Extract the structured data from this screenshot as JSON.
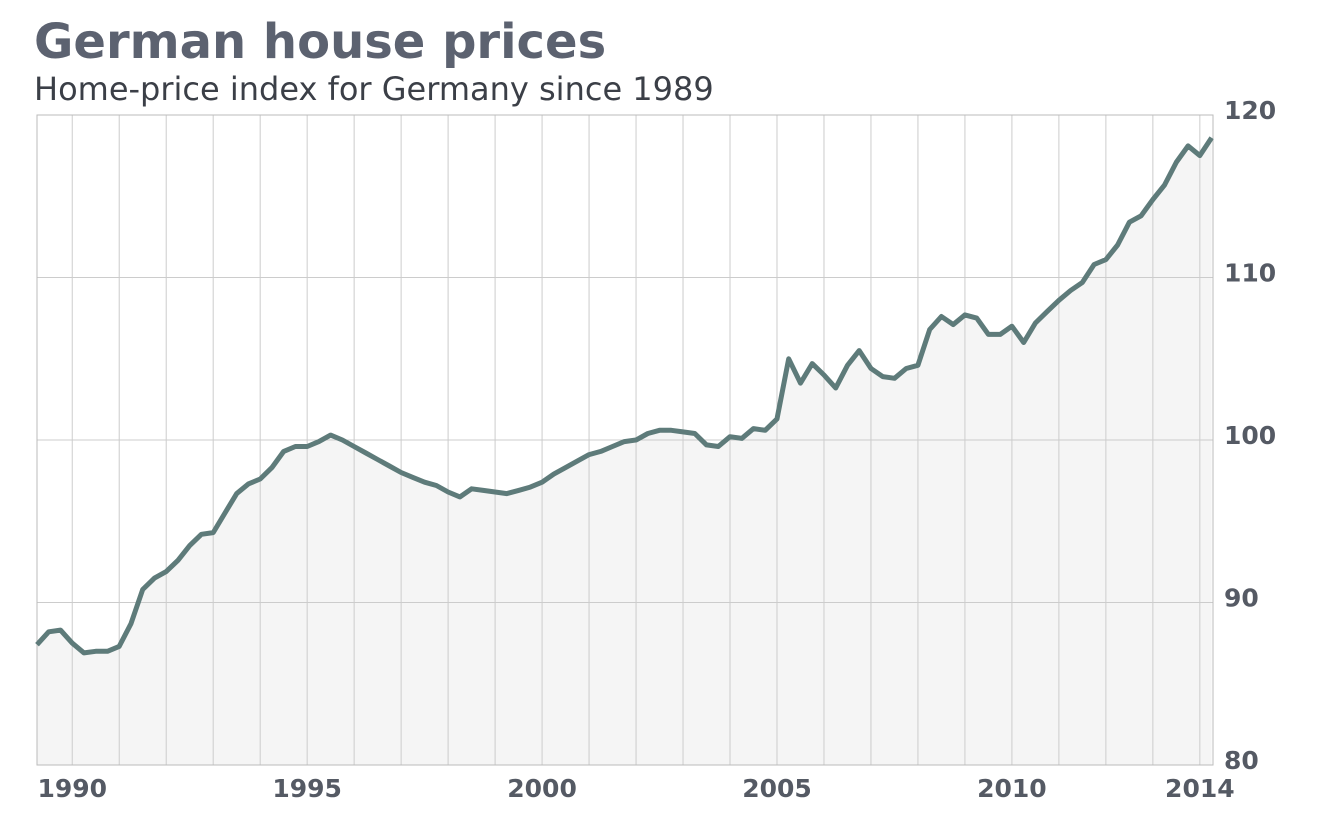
{
  "chart_data": {
    "type": "line",
    "title": "German house prices",
    "subtitle": "Home-price index for Germany since 1989",
    "x": [
      1989.25,
      1989.5,
      1989.75,
      1990,
      1990.25,
      1990.5,
      1990.75,
      1991,
      1991.25,
      1991.5,
      1991.75,
      1992,
      1992.25,
      1992.5,
      1992.75,
      1993,
      1993.25,
      1993.5,
      1993.75,
      1994,
      1994.25,
      1994.5,
      1994.75,
      1995,
      1995.25,
      1995.5,
      1995.75,
      1996,
      1996.25,
      1996.5,
      1996.75,
      1997,
      1997.25,
      1997.5,
      1997.75,
      1998,
      1998.25,
      1998.5,
      1998.75,
      1999,
      1999.25,
      1999.5,
      1999.75,
      2000,
      2000.25,
      2000.5,
      2000.75,
      2001,
      2001.25,
      2001.5,
      2001.75,
      2002,
      2002.25,
      2002.5,
      2002.75,
      2003,
      2003.25,
      2003.5,
      2003.75,
      2004,
      2004.25,
      2004.5,
      2004.75,
      2005,
      2005.25,
      2005.5,
      2005.75,
      2006,
      2006.25,
      2006.5,
      2006.75,
      2007,
      2007.25,
      2007.5,
      2007.75,
      2008,
      2008.25,
      2008.5,
      2008.75,
      2009,
      2009.25,
      2009.5,
      2009.75,
      2010,
      2010.25,
      2010.5,
      2010.75,
      2011,
      2011.25,
      2011.5,
      2011.75,
      2012,
      2012.25,
      2012.5,
      2012.75,
      2013,
      2013.25,
      2013.5,
      2013.75,
      2014,
      2014.25
    ],
    "series": [
      {
        "color": "#5e7b7a",
        "fill": "#f5f5f5",
        "values": [
          87.4,
          88.2,
          88.3,
          87.5,
          86.9,
          87.0,
          87.0,
          87.3,
          88.7,
          90.8,
          91.5,
          91.9,
          92.6,
          93.5,
          94.2,
          94.3,
          95.5,
          96.7,
          97.3,
          97.6,
          98.3,
          99.3,
          99.6,
          99.6,
          99.9,
          100.3,
          100.0,
          99.6,
          99.2,
          98.8,
          98.4,
          98.0,
          97.7,
          97.4,
          97.2,
          96.8,
          96.5,
          97.0,
          96.9,
          96.8,
          96.7,
          96.9,
          97.1,
          97.4,
          97.9,
          98.3,
          98.7,
          99.1,
          99.3,
          99.6,
          99.9,
          100.0,
          100.4,
          100.6,
          100.6,
          100.5,
          100.4,
          99.7,
          99.6,
          100.2,
          100.1,
          100.7,
          100.6,
          101.3,
          105.0,
          103.5,
          104.7,
          104.0,
          103.2,
          104.6,
          105.5,
          104.4,
          103.9,
          103.8,
          104.4,
          104.6,
          106.8,
          107.6,
          107.1,
          107.7,
          107.5,
          106.5,
          106.5,
          107.0,
          106.0,
          107.2,
          107.9,
          108.6,
          109.2,
          109.7,
          110.8,
          111.1,
          112.0,
          113.4,
          113.8,
          114.8,
          115.7,
          117.1,
          118.1,
          117.5,
          118.6
        ]
      }
    ],
    "xlim": [
      1989.25,
      2014.28
    ],
    "xticks": [
      1990,
      1995,
      2000,
      2005,
      2010,
      2014
    ],
    "xgrid": [
      1990,
      1991,
      1992,
      1993,
      1994,
      1995,
      1996,
      1997,
      1998,
      1999,
      2000,
      2001,
      2002,
      2003,
      2004,
      2005,
      2006,
      2007,
      2008,
      2009,
      2010,
      2011,
      2012,
      2013,
      2014
    ],
    "ylim": [
      80,
      120
    ],
    "yticks": [
      80,
      90,
      100,
      110,
      120
    ],
    "grid": true
  }
}
